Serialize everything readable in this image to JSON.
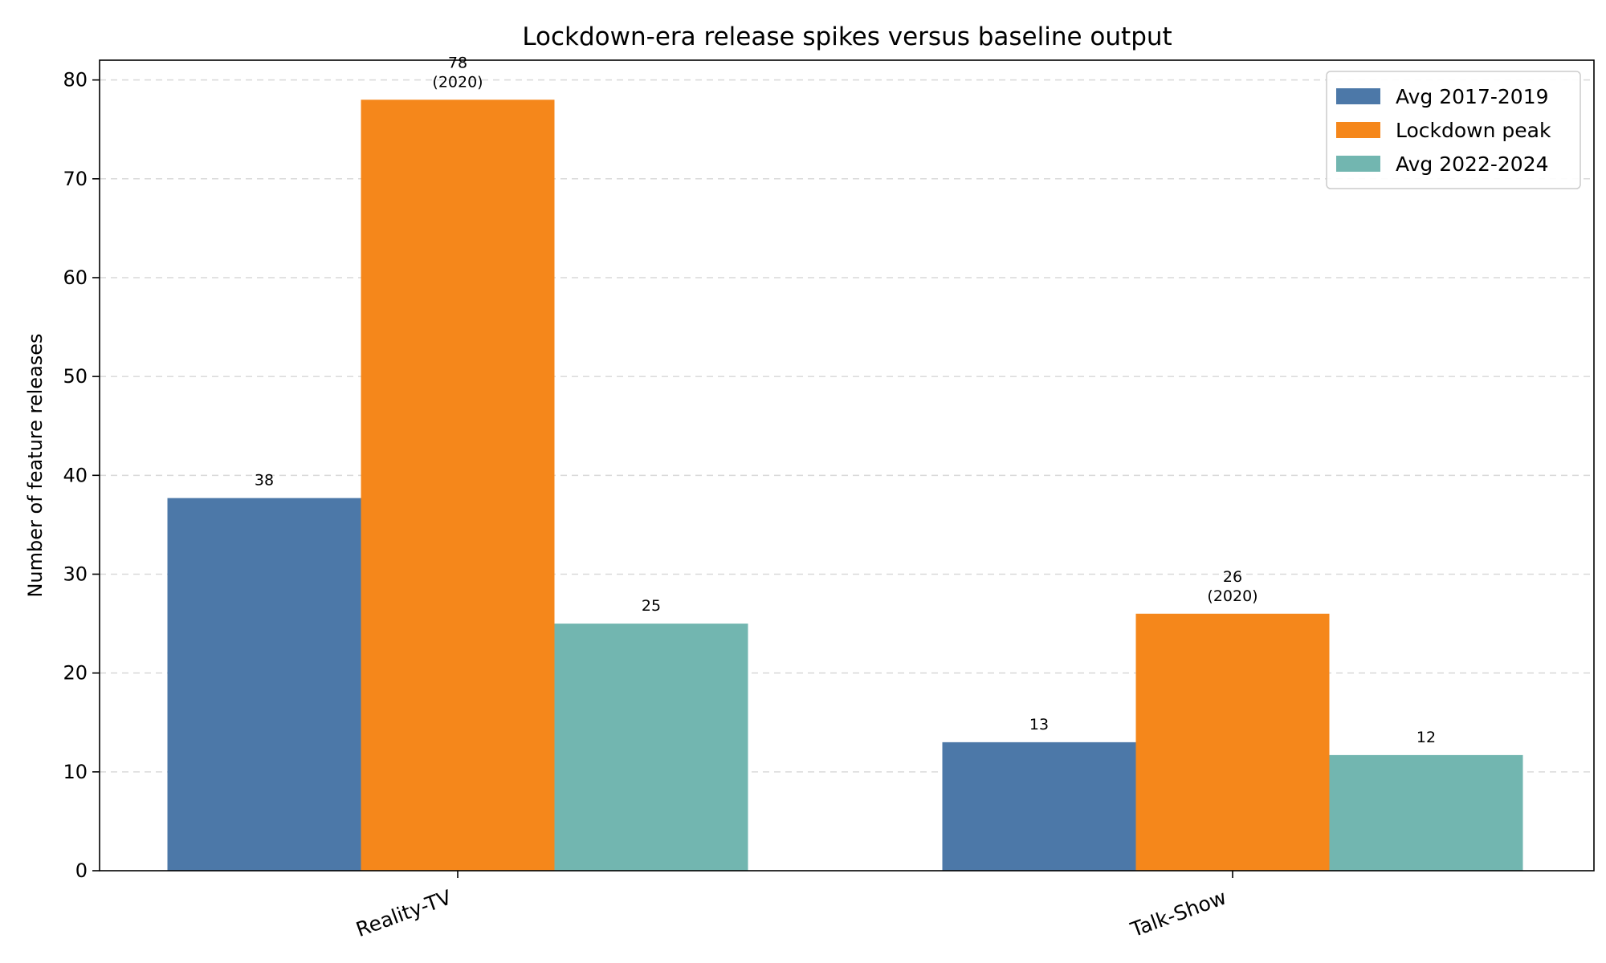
{
  "chart_data": {
    "type": "bar",
    "title": "Lockdown-era release spikes versus baseline output",
    "xlabel": "",
    "ylabel": "Number of feature releases",
    "ylim": [
      0,
      82
    ],
    "yticks": [
      0,
      10,
      20,
      30,
      40,
      50,
      60,
      70,
      80
    ],
    "grid": "y-dashed",
    "legend_position": "top-right",
    "categories": [
      "Reality-TV",
      "Talk-Show"
    ],
    "series": [
      {
        "name": "Avg 2017-2019",
        "color": "#4c78a8",
        "values": [
          37.7,
          13
        ],
        "labels": [
          "38",
          "13"
        ]
      },
      {
        "name": "Lockdown peak",
        "color": "#f5871b",
        "values": [
          78,
          26
        ],
        "labels": [
          "78",
          "26"
        ],
        "sublabels": [
          "(2020)",
          "(2020)"
        ]
      },
      {
        "name": "Avg 2022-2024",
        "color": "#72b6b0",
        "values": [
          25,
          11.7
        ],
        "labels": [
          "25",
          "12"
        ]
      }
    ]
  }
}
